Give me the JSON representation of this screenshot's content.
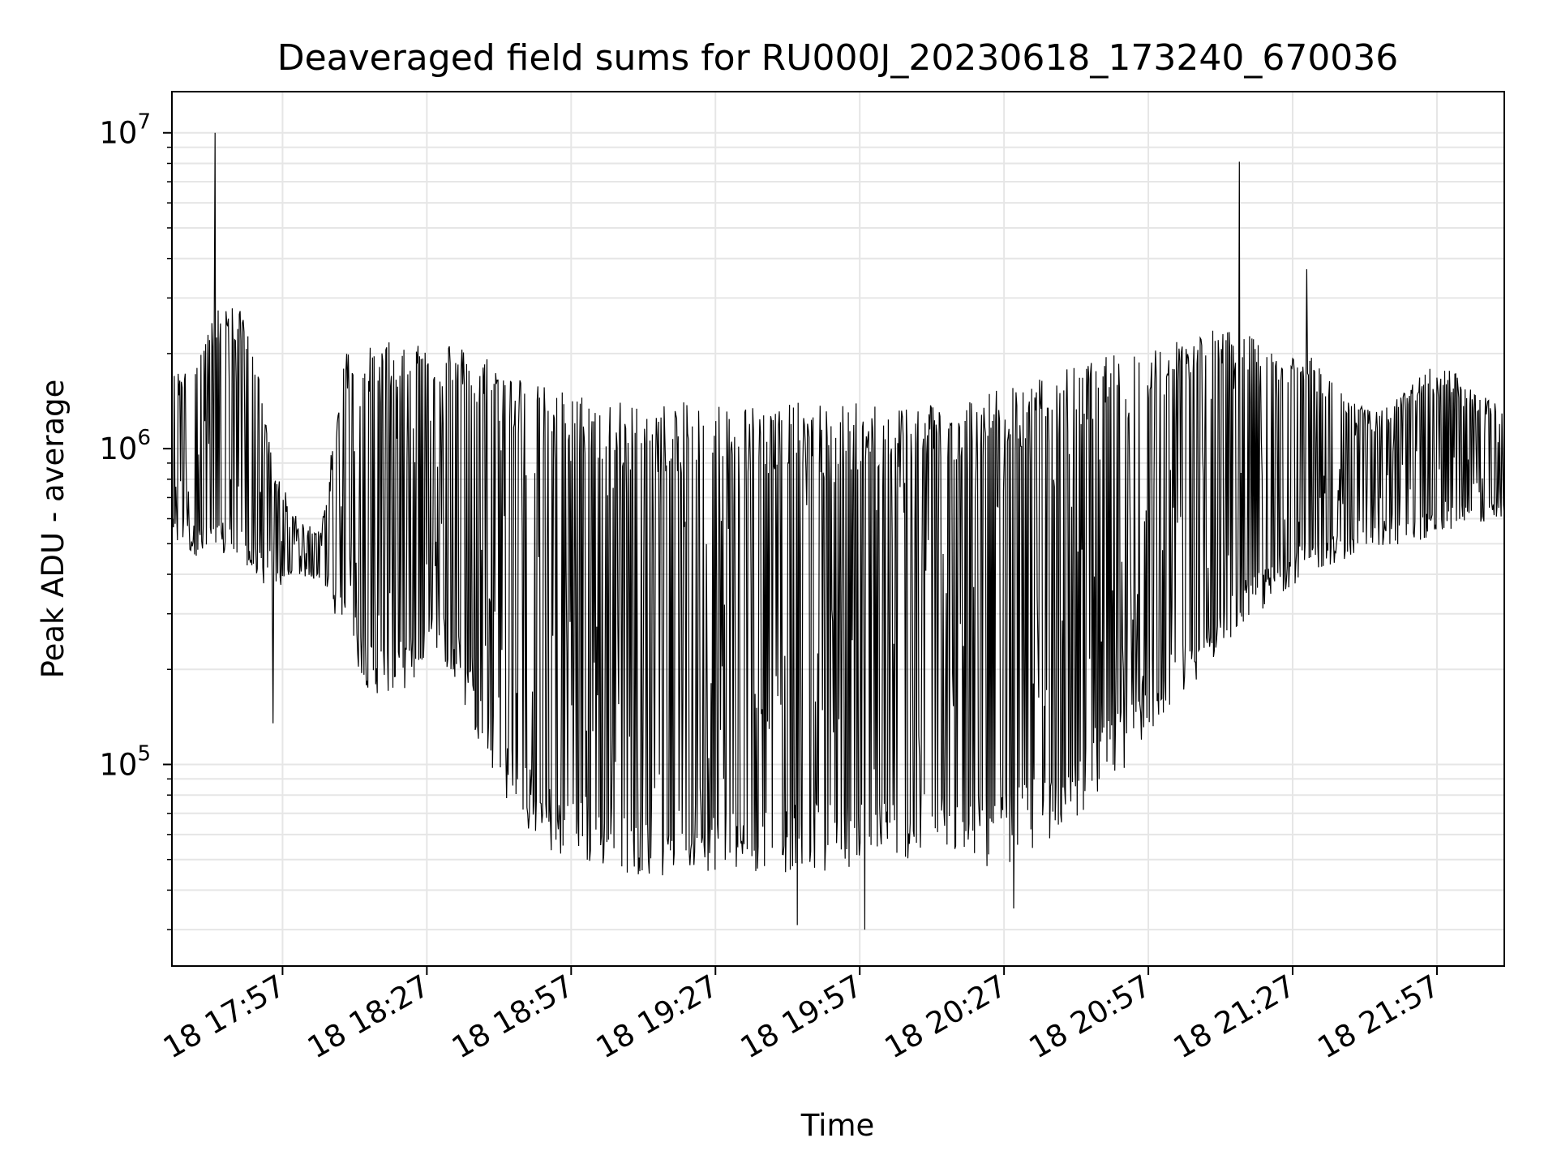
{
  "chart_data": {
    "type": "line",
    "title": "Deaveraged field sums for RU000J_20230618_173240_670036",
    "xlabel": "Time",
    "ylabel": "Peak ADU - average",
    "y_scale": "log",
    "ylim": [
      23000,
      13500000
    ],
    "xlim": [
      "18 17:34",
      "18 22:11"
    ],
    "grid": true,
    "line_color": "#000000",
    "grid_color": "#e6e6e6",
    "x_ticks": [
      "18 17:57",
      "18 18:27",
      "18 18:57",
      "18 19:27",
      "18 19:57",
      "18 20:27",
      "18 20:57",
      "18 21:27",
      "18 21:57"
    ],
    "y_ticks": [
      {
        "base": "10",
        "exp": "5",
        "value": 100000
      },
      {
        "base": "10",
        "exp": "6",
        "value": 1000000
      },
      {
        "base": "10",
        "exp": "7",
        "value": 10000000
      }
    ],
    "envelope": {
      "x": [
        "18 17:34",
        "18 17:40",
        "18 17:45",
        "18 17:50",
        "18 17:55",
        "18 18:00",
        "18 18:05",
        "18 18:10",
        "18 18:15",
        "18 18:20",
        "18 18:25",
        "18 18:30",
        "18 18:35",
        "18 18:40",
        "18 18:45",
        "18 18:50",
        "18 18:55",
        "18 19:00",
        "18 19:05",
        "18 19:10",
        "18 19:15",
        "18 19:20",
        "18 19:25",
        "18 19:30",
        "18 19:35",
        "18 19:40",
        "18 19:45",
        "18 19:50",
        "18 19:55",
        "18 20:00",
        "18 20:05",
        "18 20:10",
        "18 20:15",
        "18 20:20",
        "18 20:25",
        "18 20:30",
        "18 20:35",
        "18 20:40",
        "18 20:45",
        "18 20:50",
        "18 20:55",
        "18 21:00",
        "18 21:05",
        "18 21:10",
        "18 21:15",
        "18 21:20",
        "18 21:25",
        "18 21:30",
        "18 21:35",
        "18 21:40",
        "18 21:45",
        "18 21:50",
        "18 21:55",
        "18 22:00",
        "18 22:05",
        "18 22:11"
      ],
      "upper": [
        1700000,
        2200000,
        3000000,
        2600000,
        900000,
        600000,
        550000,
        2100000,
        2100000,
        2200000,
        2300000,
        2300000,
        2100000,
        2000000,
        1800000,
        1600000,
        1550000,
        1500000,
        1450000,
        1400000,
        1400000,
        1400000,
        1450000,
        1400000,
        1400000,
        1400000,
        1400000,
        1400000,
        1400000,
        1400000,
        1400000,
        1450000,
        1450000,
        1500000,
        1550000,
        1600000,
        1700000,
        1800000,
        1900000,
        2000000,
        2100000,
        2200000,
        2300000,
        2400000,
        2400000,
        2200000,
        2100000,
        2000000,
        1700000,
        1400000,
        1300000,
        1500000,
        1800000,
        1800000,
        1500000,
        1400000
      ],
      "lower": [
        500000,
        450000,
        450000,
        400000,
        350000,
        400000,
        380000,
        250000,
        170000,
        160000,
        180000,
        220000,
        150000,
        100000,
        70000,
        55000,
        50000,
        48000,
        46000,
        45000,
        44000,
        45000,
        46000,
        46000,
        45000,
        45000,
        46000,
        46000,
        47000,
        48000,
        50000,
        50000,
        50000,
        48000,
        47000,
        50000,
        55000,
        62000,
        75000,
        90000,
        110000,
        140000,
        170000,
        210000,
        260000,
        300000,
        350000,
        400000,
        430000,
        460000,
        480000,
        500000,
        520000,
        550000,
        580000,
        600000
      ]
    },
    "spikes": [
      {
        "x": "18 17:43",
        "y": 10000000
      },
      {
        "x": "18 21:16",
        "y": 8100000
      },
      {
        "x": "18 21:30",
        "y": 3700000
      },
      {
        "x": "18 19:44",
        "y": 31000
      },
      {
        "x": "18 19:58",
        "y": 30000
      },
      {
        "x": "18 20:29",
        "y": 35000
      },
      {
        "x": "18 17:55",
        "y": 135000
      }
    ]
  }
}
